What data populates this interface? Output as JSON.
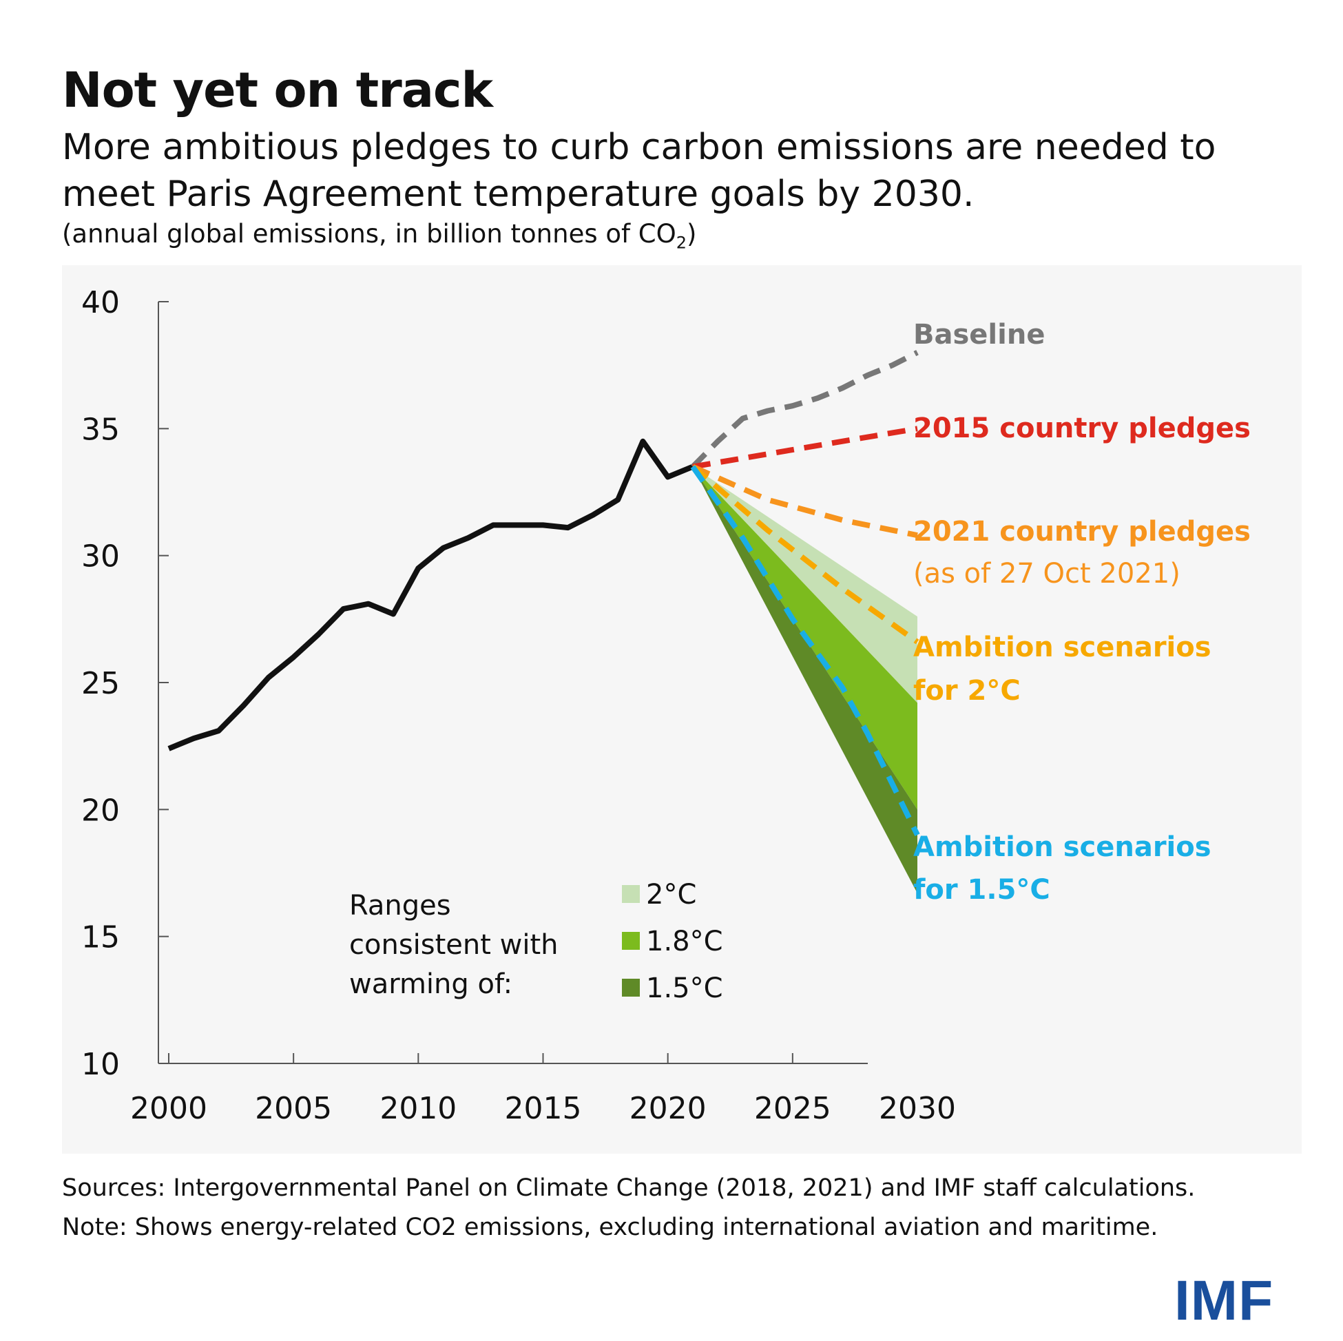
{
  "header": {
    "title": "Not yet on track",
    "subtitle": "More ambitious pledges to curb carbon emissions are needed to meet Paris Agreement temperature goals by 2030.",
    "units_prefix": "(annual global emissions, in billion tonnes of CO",
    "units_sub": "2",
    "units_suffix": ")"
  },
  "chart_data": {
    "type": "line",
    "title": "Not yet on track",
    "ylabel": "annual global emissions, in billion tonnes of CO2",
    "xlabel": "",
    "xlim": [
      2000,
      2030
    ],
    "ylim": [
      10,
      40
    ],
    "x_ticks": [
      2000,
      2005,
      2010,
      2015,
      2020,
      2025,
      2030
    ],
    "y_ticks": [
      10,
      15,
      20,
      25,
      30,
      35,
      40
    ],
    "grid": false,
    "series": [
      {
        "name": "",
        "style": "solid",
        "color": "#111111",
        "x": [
          2000,
          2001,
          2002,
          2003,
          2004,
          2005,
          2006,
          2007,
          2008,
          2009,
          2010,
          2011,
          2012,
          2013,
          2014,
          2015,
          2016,
          2017,
          2018,
          2019,
          2020,
          2021
        ],
        "y": [
          22.4,
          22.8,
          23.1,
          24.1,
          25.2,
          26.0,
          26.9,
          27.9,
          28.1,
          27.7,
          29.5,
          30.3,
          30.7,
          31.2,
          31.2,
          31.2,
          31.1,
          31.6,
          32.2,
          34.5,
          33.1,
          33.5
        ]
      },
      {
        "name": "Baseline",
        "style": "dashed",
        "color": "#777777",
        "x": [
          2021,
          2022,
          2023,
          2024,
          2025,
          2026,
          2027,
          2028,
          2029,
          2030
        ],
        "y": [
          33.5,
          34.5,
          35.4,
          35.7,
          35.9,
          36.2,
          36.6,
          37.1,
          37.5,
          38.0
        ]
      },
      {
        "name": "2015 country pledges",
        "style": "dashed",
        "color": "#de2a1e",
        "x": [
          2021,
          2030
        ],
        "y": [
          33.5,
          35.0
        ]
      },
      {
        "name": "2021 country pledges",
        "style": "dashed",
        "color": "#f7941d",
        "x": [
          2021,
          2024,
          2027,
          2030
        ],
        "y": [
          33.5,
          32.2,
          31.4,
          30.8
        ]
      },
      {
        "name": "Ambition scenarios for 2°C",
        "style": "dashed",
        "color": "#f7a800",
        "x": [
          2021,
          2024,
          2027,
          2030
        ],
        "y": [
          33.5,
          31.0,
          28.7,
          26.6
        ]
      },
      {
        "name": "Ambition scenarios for 1.5°C",
        "style": "dashed",
        "color": "#19aee6",
        "x": [
          2021,
          2023,
          2025,
          2027,
          2028,
          2029,
          2030
        ],
        "y": [
          33.5,
          30.7,
          27.5,
          24.8,
          23.0,
          21.0,
          19.0
        ]
      }
    ],
    "bands": [
      {
        "name": "2°C",
        "color": "#c6e0b4",
        "x": [
          2021,
          2030
        ],
        "upper": [
          33.5,
          27.6
        ],
        "lower": [
          33.5,
          24.2
        ]
      },
      {
        "name": "1.8°C",
        "color": "#7cbb1e",
        "x": [
          2021,
          2030
        ],
        "upper": [
          33.5,
          24.2
        ],
        "lower": [
          33.5,
          20.0
        ]
      },
      {
        "name": "1.5°C",
        "color": "#5f8a27",
        "x": [
          2021,
          2030
        ],
        "upper": [
          33.5,
          20.0
        ],
        "lower": [
          33.5,
          16.7
        ]
      }
    ],
    "annotations": {
      "baseline": "Baseline",
      "pledges_2015": "2015 country pledges",
      "pledges_2021": "2021 country pledges",
      "pledges_2021_note": "(as of 27 Oct 2021)",
      "ambition_2c_line1": "Ambition scenarios",
      "ambition_2c_line2": "for 2°C",
      "ambition_15c_line1": "Ambition scenarios",
      "ambition_15c_line2": "for 1.5°C"
    },
    "legend": {
      "placement": "bottom-center",
      "title_lines": [
        "Ranges",
        "consistent with",
        "warming of:"
      ],
      "items": [
        {
          "label": "2°C",
          "color": "#c6e0b4"
        },
        {
          "label": "1.8°C",
          "color": "#7cbb1e"
        },
        {
          "label": "1.5°C",
          "color": "#5f8a27"
        }
      ]
    }
  },
  "footer": {
    "sources": "Sources: Intergovernmental Panel on Climate Change (2018, 2021) and IMF staff calculations.",
    "note": "Note: Shows energy-related CO2 emissions, excluding international aviation and maritime."
  },
  "logo": {
    "text": "IMF",
    "color": "#1a4f9c"
  }
}
